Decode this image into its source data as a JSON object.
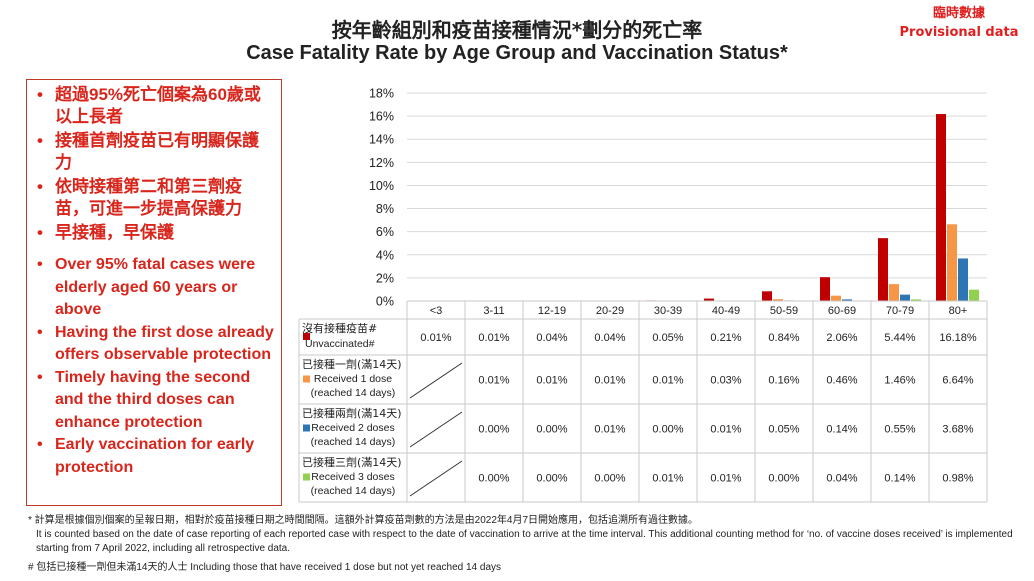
{
  "header": {
    "title_zh": "按年齡組別和疫苗接種情況*劃分的死亡率",
    "title_en": "Case Fatality Rate by Age Group and Vaccination Status*",
    "provisional_zh": "臨時數據",
    "provisional_en": "Provisional data"
  },
  "bullets": {
    "zh": [
      "超過95%死亡個案為60歲或以上長者",
      "接種首劑疫苗已有明顯保護力",
      "依時接種第二和第三劑疫苗，可進一步提高保護力",
      "早接種，早保護"
    ],
    "en": [
      "Over 95% fatal cases were elderly aged 60 years or above",
      "Having the first dose already offers observable protection",
      "Timely having the second and the third doses can enhance protection",
      "Early vaccination for early protection"
    ]
  },
  "colors": {
    "accent_red": "#d9261c",
    "unvaccinated": "#c00000",
    "dose1": "#f79646",
    "dose2": "#2e75b6",
    "dose3": "#92d050"
  },
  "chart_data": {
    "type": "bar",
    "categories": [
      "<3",
      "3-11",
      "12-19",
      "20-29",
      "30-39",
      "40-49",
      "50-59",
      "60-69",
      "70-79",
      "80+"
    ],
    "ylim": [
      0,
      18
    ],
    "yticks": [
      "18%",
      "16%",
      "14%",
      "12%",
      "10%",
      "8%",
      "6%",
      "4%",
      "2%",
      "0%"
    ],
    "grid": true,
    "series": [
      {
        "name_zh": "沒有接種疫苗#",
        "name_en": "Unvaccinated#",
        "values": [
          0.01,
          0.01,
          0.04,
          0.04,
          0.05,
          0.21,
          0.84,
          2.06,
          5.44,
          16.18
        ],
        "labels": [
          "0.01%",
          "0.01%",
          "0.04%",
          "0.04%",
          "0.05%",
          "0.21%",
          "0.84%",
          "2.06%",
          "5.44%",
          "16.18%"
        ]
      },
      {
        "name_zh": "已接種一劑(滿14天)",
        "name_en": "Received 1 dose (reached 14 days)",
        "values": [
          null,
          0.01,
          0.01,
          0.01,
          0.01,
          0.03,
          0.16,
          0.46,
          1.46,
          6.64
        ],
        "labels": [
          "",
          "0.01%",
          "0.01%",
          "0.01%",
          "0.01%",
          "0.03%",
          "0.16%",
          "0.46%",
          "1.46%",
          "6.64%"
        ]
      },
      {
        "name_zh": "已接種兩劑(滿14天)",
        "name_en": "Received 2 doses (reached 14 days)",
        "values": [
          null,
          0.0,
          0.0,
          0.01,
          0.0,
          0.01,
          0.05,
          0.14,
          0.55,
          3.68
        ],
        "labels": [
          "",
          "0.00%",
          "0.00%",
          "0.01%",
          "0.00%",
          "0.01%",
          "0.05%",
          "0.14%",
          "0.55%",
          "3.68%"
        ]
      },
      {
        "name_zh": "已接種三劑(滿14天)",
        "name_en": "Received 3 doses (reached 14 days)",
        "values": [
          null,
          0.0,
          0.0,
          0.0,
          0.01,
          0.01,
          0.0,
          0.04,
          0.14,
          0.98
        ],
        "labels": [
          "",
          "0.00%",
          "0.00%",
          "0.00%",
          "0.01%",
          "0.01%",
          "0.00%",
          "0.04%",
          "0.14%",
          "0.98%"
        ]
      }
    ]
  },
  "footnotes": {
    "star_zh": "* 計算是根據個別個案的呈報日期，相對於疫苗接種日期之時間間隔。這額外計算疫苗劑數的方法是由2022年4月7日開始應用，包括追溯所有過往數據。",
    "star_en": "It is counted based on the date of case reporting of each reported case with respect to the date of vaccination to arrive at the time interval.  This additional counting method for ‘no. of vaccine doses received’ is implemented starting from 7 April 2022, including all retrospective data.",
    "hash": "# 包括已接種一劑但未滿14天的人士 Including those that have received 1 dose but not yet reached 14 days"
  }
}
